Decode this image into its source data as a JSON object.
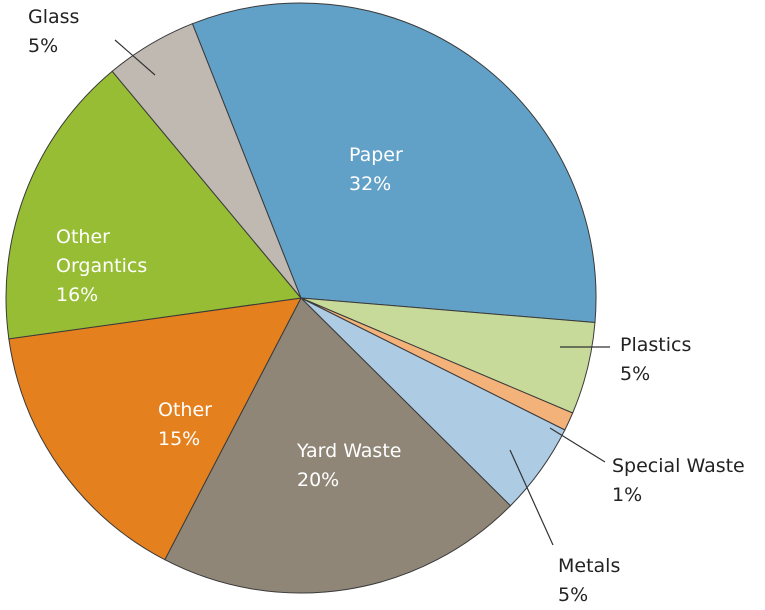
{
  "chart_data": {
    "type": "pie",
    "categories": [
      "Paper",
      "Plastics",
      "Special Waste",
      "Metals",
      "Yard Waste",
      "Other",
      "Other Organtics",
      "Glass"
    ],
    "values": [
      32,
      5,
      1,
      5,
      20,
      15,
      16,
      5
    ],
    "value_labels": [
      "32%",
      "5%",
      "1%",
      "5%",
      "20%",
      "15%",
      "16%",
      "5%"
    ],
    "colors": [
      "#62a1c7",
      "#c8da9a",
      "#f2b27a",
      "#aecbe4",
      "#8f8677",
      "#e5801e",
      "#96bd33",
      "#c0b9b2"
    ]
  }
}
